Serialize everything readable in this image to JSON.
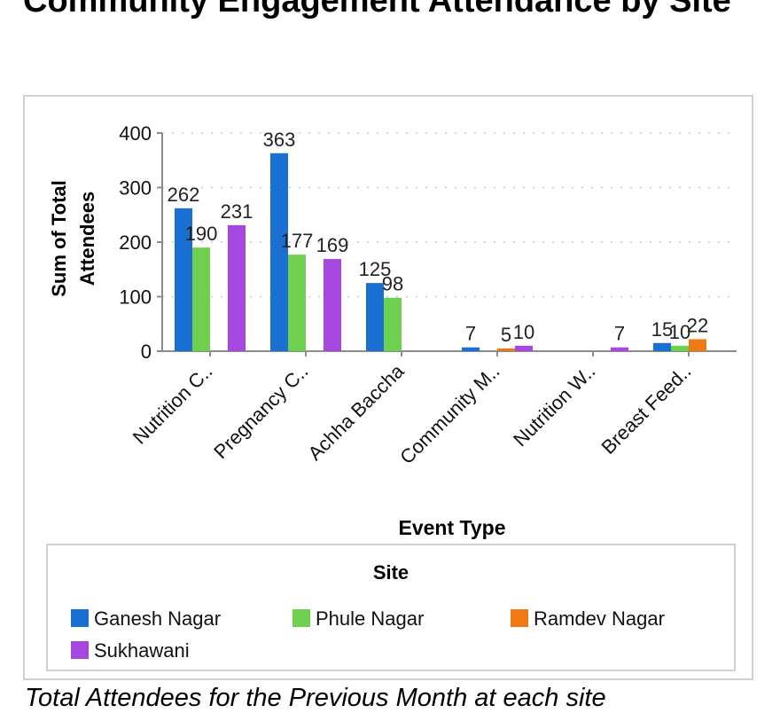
{
  "page": {
    "title": "Community Engagement Attendance by Site",
    "caption": "Total Attendees for the Previous Month at each site"
  },
  "chart_data": {
    "type": "bar",
    "title": "",
    "xlabel": "Event Type",
    "ylabel_lines": [
      "Sum of Total",
      "Attendees"
    ],
    "categories": [
      "Nutrition C..",
      "Pregnancy C..",
      "Achha Baccha",
      "Community M..",
      "Nutrition W..",
      "Breast Feed.."
    ],
    "yticks": [
      0,
      100,
      200,
      300,
      400
    ],
    "ylim": [
      0,
      400
    ],
    "grid": "horizontal dotted",
    "legend": {
      "title": "Site",
      "placement": "bottom"
    },
    "series": [
      {
        "name": "Ganesh Nagar",
        "color": "#1a6fd2",
        "values": [
          262,
          363,
          125,
          7,
          null,
          15
        ]
      },
      {
        "name": "Phule Nagar",
        "color": "#6fcf4e",
        "values": [
          190,
          177,
          98,
          null,
          null,
          10
        ]
      },
      {
        "name": "Ramdev Nagar",
        "color": "#ef7a13",
        "values": [
          null,
          null,
          null,
          5,
          null,
          22
        ]
      },
      {
        "name": "Sukhawani",
        "color": "#a648e0",
        "values": [
          231,
          169,
          null,
          10,
          7,
          null
        ]
      }
    ]
  }
}
